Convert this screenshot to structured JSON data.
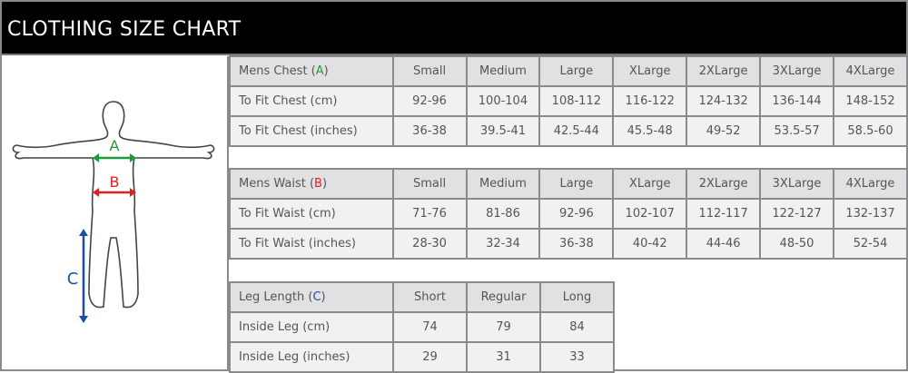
{
  "title": "CLOTHING SIZE CHART",
  "figure": {
    "labels": {
      "a": "A",
      "b": "B",
      "c": "C"
    },
    "colors": {
      "a": "#1e9a3a",
      "b": "#e02020",
      "c": "#1a4fa0"
    }
  },
  "chest": {
    "header": {
      "prefix": "Mens Chest (",
      "letter": "A",
      "suffix": ")"
    },
    "sizes": [
      "Small",
      "Medium",
      "Large",
      "XLarge",
      "2XLarge",
      "3XLarge",
      "4XLarge"
    ],
    "rows": [
      {
        "label": "To Fit Chest (cm)",
        "values": [
          "92-96",
          "100-104",
          "108-112",
          "116-122",
          "124-132",
          "136-144",
          "148-152"
        ]
      },
      {
        "label": "To Fit Chest (inches)",
        "values": [
          "36-38",
          "39.5-41",
          "42.5-44",
          "45.5-48",
          "49-52",
          "53.5-57",
          "58.5-60"
        ]
      }
    ]
  },
  "waist": {
    "header": {
      "prefix": "Mens Waist (",
      "letter": "B",
      "suffix": ")"
    },
    "sizes": [
      "Small",
      "Medium",
      "Large",
      "XLarge",
      "2XLarge",
      "3XLarge",
      "4XLarge"
    ],
    "rows": [
      {
        "label": "To Fit Waist (cm)",
        "values": [
          "71-76",
          "81-86",
          "92-96",
          "102-107",
          "112-117",
          "122-127",
          "132-137"
        ]
      },
      {
        "label": "To Fit Waist (inches)",
        "values": [
          "28-30",
          "32-34",
          "36-38",
          "40-42",
          "44-46",
          "48-50",
          "52-54"
        ]
      }
    ]
  },
  "leg": {
    "header": {
      "prefix": "Leg Length (",
      "letter": "C",
      "suffix": ")"
    },
    "sizes": [
      "Short",
      "Regular",
      "Long"
    ],
    "rows": [
      {
        "label": "Inside Leg (cm)",
        "values": [
          "74",
          "79",
          "84"
        ]
      },
      {
        "label": "Inside Leg (inches)",
        "values": [
          "29",
          "31",
          "33"
        ]
      }
    ]
  }
}
